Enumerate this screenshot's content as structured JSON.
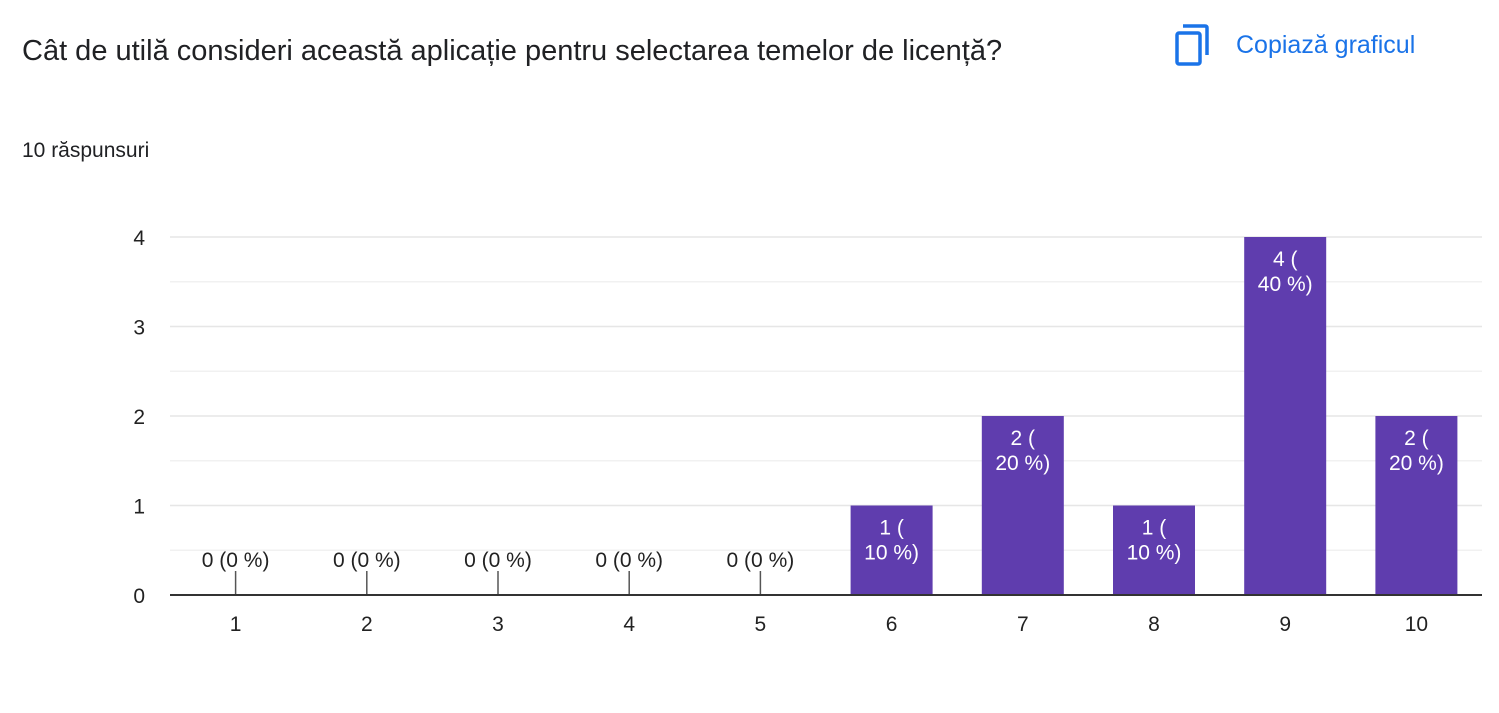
{
  "question": {
    "title": "Cât de utilă consideri această aplicație pentru selectarea temelor de licență?",
    "responses": "10 răspunsuri"
  },
  "toolbar": {
    "copy_label": "Copiază graficul",
    "copy_icon": "copy-icon"
  },
  "colors": {
    "bar": "#5f3dae",
    "accent": "#1a73e8",
    "grid": "#e6e6e6",
    "axis": "#333333"
  },
  "chart_data": {
    "type": "bar",
    "categories": [
      "1",
      "2",
      "3",
      "4",
      "5",
      "6",
      "7",
      "8",
      "9",
      "10"
    ],
    "values": [
      0,
      0,
      0,
      0,
      0,
      1,
      2,
      1,
      4,
      2
    ],
    "data_labels": [
      "0 (0 %)",
      "0 (0 %)",
      "0 (0 %)",
      "0 (0 %)",
      "0 (0 %)",
      "1 ( 10 %)",
      "2 ( 20 %)",
      "1 ( 10 %)",
      "4 ( 40 %)",
      "2 ( 20 %)"
    ],
    "yticks": [
      0,
      1,
      2,
      3,
      4
    ],
    "ylim": [
      0,
      4
    ],
    "grid": true,
    "legend": "none"
  }
}
